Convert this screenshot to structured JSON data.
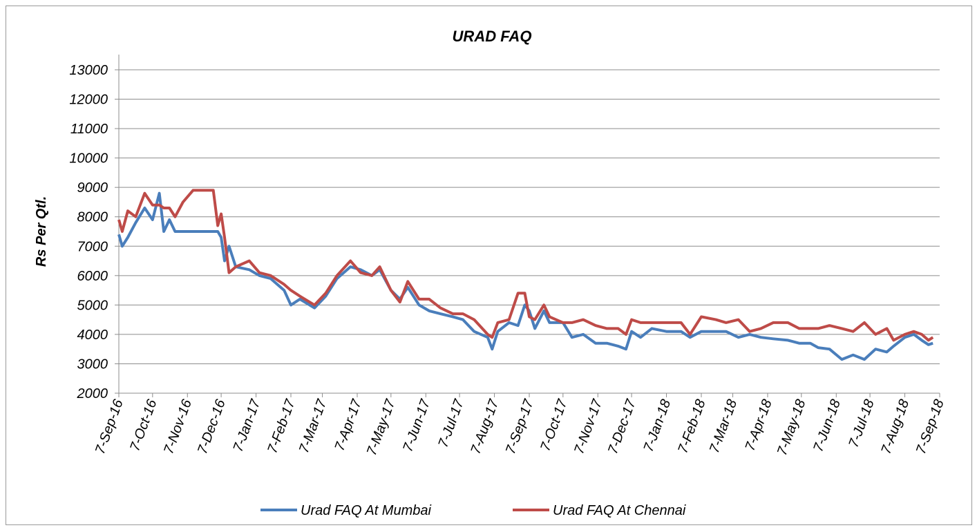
{
  "chart_data": {
    "type": "line",
    "title": "URAD FAQ",
    "y_label": "Rs Per Qtl.",
    "x": [
      "7-Sep-16",
      "10-Sep-16",
      "15-Sep-16",
      "22-Sep-16",
      "30-Sep-16",
      "7-Oct-16",
      "13-Oct-16",
      "17-Oct-16",
      "22-Oct-16",
      "27-Oct-16",
      "3-Nov-16",
      "12-Nov-16",
      "20-Nov-16",
      "30-Nov-16",
      "4-Dec-16",
      "7-Dec-16",
      "10-Dec-16",
      "14-Dec-16",
      "20-Dec-16",
      "1-Jan-17",
      "10-Jan-17",
      "20-Jan-17",
      "1-Feb-17",
      "7-Feb-17",
      "15-Feb-17",
      "28-Feb-17",
      "10-Mar-17",
      "20-Mar-17",
      "1-Apr-17",
      "10-Apr-17",
      "20-Apr-17",
      "27-Apr-17",
      "7-May-17",
      "15-May-17",
      "22-May-17",
      "1-Jun-17",
      "10-Jun-17",
      "20-Jun-17",
      "1-Jul-17",
      "10-Jul-17",
      "20-Jul-17",
      "1-Aug-17",
      "5-Aug-17",
      "10-Aug-17",
      "20-Aug-17",
      "28-Aug-17",
      "3-Sep-17",
      "7-Sep-17",
      "12-Sep-17",
      "20-Sep-17",
      "25-Sep-17",
      "7-Oct-17",
      "15-Oct-17",
      "25-Oct-17",
      "5-Nov-17",
      "15-Nov-17",
      "25-Nov-17",
      "2-Dec-17",
      "7-Dec-17",
      "15-Dec-17",
      "25-Dec-17",
      "7-Jan-18",
      "20-Jan-18",
      "28-Jan-18",
      "7-Feb-18",
      "20-Feb-18",
      "1-Mar-18",
      "12-Mar-18",
      "22-Mar-18",
      "1-Apr-18",
      "12-Apr-18",
      "25-Apr-18",
      "5-May-18",
      "15-May-18",
      "22-May-18",
      "1-Jun-18",
      "12-Jun-18",
      "22-Jun-18",
      "2-Jul-18",
      "12-Jul-18",
      "22-Jul-18",
      "28-Jul-18",
      "7-Aug-18",
      "15-Aug-18",
      "22-Aug-18",
      "28-Aug-18",
      "1-Sep-18"
    ],
    "series": [
      {
        "name": "Urad FAQ At Mumbai",
        "color": "#4a7ebb",
        "values": [
          7400,
          7000,
          7300,
          7800,
          8300,
          7900,
          8800,
          7500,
          7900,
          7500,
          7500,
          7500,
          7500,
          7500,
          7500,
          7300,
          6500,
          7000,
          6300,
          6200,
          6000,
          5900,
          5500,
          5000,
          5200,
          4900,
          5300,
          5900,
          6300,
          6200,
          6000,
          6200,
          5500,
          5200,
          5600,
          5000,
          4800,
          4700,
          4600,
          4500,
          4100,
          3900,
          3500,
          4100,
          4400,
          4300,
          5000,
          4800,
          4200,
          4800,
          4400,
          4400,
          3900,
          4000,
          3700,
          3700,
          3600,
          3500,
          4100,
          3900,
          4200,
          4100,
          4100,
          3900,
          4100,
          4100,
          4100,
          3900,
          4000,
          3900,
          3850,
          3800,
          3700,
          3700,
          3550,
          3500,
          3150,
          3300,
          3150,
          3500,
          3400,
          3600,
          3900,
          4000,
          3800,
          3650,
          3700
        ]
      },
      {
        "name": "Urad FAQ At Chennai",
        "color": "#be4b48",
        "values": [
          7900,
          7500,
          8200,
          8000,
          8800,
          8400,
          8400,
          8300,
          8300,
          8000,
          8500,
          8900,
          8900,
          8900,
          7700,
          8100,
          7300,
          6100,
          6300,
          6500,
          6100,
          6000,
          5700,
          5500,
          5300,
          5000,
          5400,
          6000,
          6500,
          6100,
          6000,
          6300,
          5500,
          5100,
          5800,
          5200,
          5200,
          4900,
          4700,
          4700,
          4500,
          4000,
          3900,
          4400,
          4500,
          5400,
          5400,
          4600,
          4500,
          5000,
          4600,
          4400,
          4400,
          4500,
          4300,
          4200,
          4200,
          4000,
          4500,
          4400,
          4400,
          4400,
          4400,
          4000,
          4600,
          4500,
          4400,
          4500,
          4100,
          4200,
          4400,
          4400,
          4200,
          4200,
          4200,
          4300,
          4200,
          4100,
          4400,
          4000,
          4200,
          3800,
          4000,
          4100,
          4000,
          3800,
          3900
        ]
      }
    ],
    "xlim": [
      "7-Sep-16",
      "7-Sep-18"
    ],
    "xticks": [
      "7-Sep-16",
      "7-Oct-16",
      "7-Nov-16",
      "7-Dec-16",
      "7-Jan-17",
      "7-Feb-17",
      "7-Mar-17",
      "7-Apr-17",
      "7-May-17",
      "7-Jun-17",
      "7-Jul-17",
      "7-Aug-17",
      "7-Sep-17",
      "7-Oct-17",
      "7-Nov-17",
      "7-Dec-17",
      "7-Jan-18",
      "7-Feb-18",
      "7-Mar-18",
      "7-Apr-18",
      "7-May-18",
      "7-Jun-18",
      "7-Jul-18",
      "7-Aug-18",
      "7-Sep-18"
    ],
    "ylim": [
      2000,
      13000
    ],
    "yticks": [
      2000,
      3000,
      4000,
      5000,
      6000,
      7000,
      8000,
      9000,
      10000,
      11000,
      12000,
      13000
    ],
    "grid": true,
    "legend": "bottom"
  }
}
